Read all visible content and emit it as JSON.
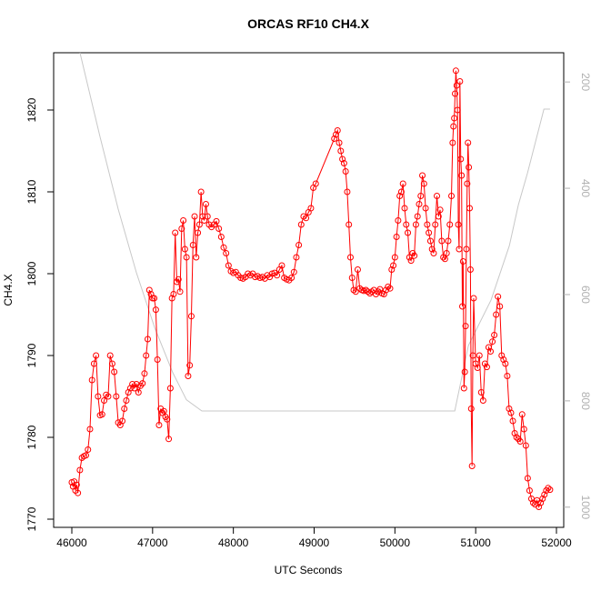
{
  "chart_data": {
    "type": "line",
    "title": "ORCAS RF10 CH4.X",
    "xlabel": "UTC Seconds",
    "ylabel": "CH4.X",
    "xlim": [
      45775,
      52090
    ],
    "ylim": [
      1769,
      1827
    ],
    "y2lim": [
      1038,
      145
    ],
    "xticks": [
      46000,
      47000,
      48000,
      49000,
      50000,
      51000,
      52000
    ],
    "yticks": [
      1770,
      1780,
      1790,
      1800,
      1810,
      1820
    ],
    "y2ticks": [
      200,
      400,
      600,
      800,
      1000
    ],
    "series": [
      {
        "color": "#c8c8c8",
        "axis": "y2",
        "markers": false,
        "x": [
          46101,
          46349,
          46574,
          46800,
          47025,
          47250,
          47419,
          47610,
          50741,
          50910,
          51191,
          51417,
          51529,
          51642,
          51845,
          51920
        ],
        "values": [
          145,
          303,
          439,
          559,
          662,
          747,
          798,
          819,
          819,
          696,
          610,
          508,
          431,
          371,
          251,
          251
        ]
      },
      {
        "color": "#ff0000",
        "markers": true,
        "x": [
          46000,
          46015,
          46030,
          46045,
          46060,
          46075,
          46100,
          46125,
          46150,
          46175,
          46200,
          46225,
          46250,
          46275,
          46300,
          46325,
          46350,
          46375,
          46400,
          46425,
          46450,
          46475,
          46500,
          46525,
          46550,
          46575,
          46600,
          46625,
          46650,
          46675,
          46700,
          46725,
          46750,
          46775,
          46800,
          46825,
          46850,
          46875,
          46900,
          46920,
          46940,
          46960,
          46980,
          47000,
          47020,
          47040,
          47060,
          47080,
          47100,
          47120,
          47140,
          47160,
          47180,
          47200,
          47220,
          47240,
          47260,
          47280,
          47300,
          47320,
          47340,
          47360,
          47380,
          47400,
          47420,
          47440,
          47460,
          47480,
          47500,
          47520,
          47540,
          47560,
          47580,
          47600,
          47620,
          47640,
          47660,
          47680,
          47700,
          47730,
          47760,
          47790,
          47820,
          47850,
          47880,
          47910,
          47940,
          47970,
          48000,
          48030,
          48060,
          48090,
          48120,
          48150,
          48180,
          48210,
          48240,
          48270,
          48300,
          48330,
          48360,
          48390,
          48420,
          48450,
          48480,
          48510,
          48540,
          48570,
          48600,
          48630,
          48660,
          48690,
          48720,
          48750,
          48780,
          48810,
          48840,
          48870,
          48900,
          48930,
          48960,
          48990,
          49020,
          49250,
          49270,
          49290,
          49310,
          49330,
          49350,
          49370,
          49390,
          49410,
          49430,
          49450,
          49470,
          49490,
          49515,
          49540,
          49565,
          49590,
          49615,
          49640,
          49665,
          49690,
          49715,
          49740,
          49765,
          49790,
          49815,
          49840,
          49865,
          49890,
          49915,
          49940,
          49960,
          49980,
          50000,
          50020,
          50040,
          50060,
          50080,
          50100,
          50120,
          50140,
          50160,
          50180,
          50200,
          50220,
          50240,
          50260,
          50280,
          50300,
          50320,
          50340,
          50360,
          50380,
          50400,
          50420,
          50440,
          50460,
          50480,
          50500,
          50520,
          50540,
          50560,
          50580,
          50600,
          50620,
          50640,
          50660,
          50680,
          50700,
          50715,
          50725,
          50735,
          50745,
          50755,
          50765,
          50775,
          50785,
          50795,
          50805,
          50815,
          50825,
          50835,
          50845,
          50855,
          50865,
          50875,
          50885,
          50895,
          50905,
          50915,
          50925,
          50935,
          50945,
          50955,
          50965,
          50975,
          51000,
          51023,
          51046,
          51069,
          51092,
          51115,
          51138,
          51161,
          51184,
          51207,
          51230,
          51253,
          51276,
          51299,
          51322,
          51345,
          51368,
          51391,
          51414,
          51437,
          51460,
          51483,
          51506,
          51529,
          51552,
          51575,
          51598,
          51621,
          51644,
          51667,
          51690,
          51713,
          51736,
          51759,
          51782,
          51805,
          51828,
          51851,
          51874,
          51897,
          51920
        ],
        "values": [
          1774.5,
          1774,
          1774.6,
          1773.5,
          1774.2,
          1773.2,
          1776,
          1777.5,
          1777.7,
          1777.8,
          1778.5,
          1781,
          1787,
          1789,
          1790,
          1785,
          1782.7,
          1782.8,
          1784.5,
          1785.2,
          1785,
          1790,
          1789,
          1788,
          1785,
          1781.8,
          1781.5,
          1782,
          1783.5,
          1784.5,
          1785.5,
          1786,
          1786.5,
          1786,
          1786.5,
          1785.5,
          1786.3,
          1786.6,
          1787.8,
          1790,
          1792,
          1798,
          1797.5,
          1797,
          1797,
          1795.6,
          1789.5,
          1781.5,
          1783.5,
          1783,
          1783.2,
          1782.5,
          1782.2,
          1779.8,
          1786,
          1797,
          1797.5,
          1805,
          1799,
          1799.3,
          1797.8,
          1805.5,
          1806.5,
          1803,
          1802,
          1787.5,
          1788.8,
          1794.8,
          1803.5,
          1807,
          1802,
          1805,
          1806,
          1810,
          1807,
          1806.5,
          1808.5,
          1807,
          1806,
          1805.7,
          1806,
          1806.4,
          1805.5,
          1804.5,
          1803.2,
          1802.5,
          1801,
          1800.3,
          1800.1,
          1800.2,
          1799.8,
          1799.5,
          1799.4,
          1799.6,
          1800,
          1799.8,
          1800,
          1799.6,
          1799.7,
          1799.5,
          1799.6,
          1799.4,
          1799.8,
          1799.6,
          1800,
          1800.1,
          1799.8,
          1800.5,
          1801,
          1799.5,
          1799.3,
          1799.2,
          1799.5,
          1800.2,
          1802,
          1803.5,
          1806,
          1807,
          1806.8,
          1807.5,
          1808,
          1810.5,
          1811,
          1816.5,
          1817,
          1817.5,
          1816,
          1815,
          1814,
          1813.5,
          1812.5,
          1810,
          1806,
          1802,
          1799.5,
          1798,
          1797.8,
          1800.5,
          1798.2,
          1798,
          1797.9,
          1798,
          1797.8,
          1797.6,
          1797.8,
          1798,
          1797.5,
          1797.8,
          1798.1,
          1797.6,
          1797.5,
          1798,
          1798.4,
          1798.2,
          1800.5,
          1801,
          1802,
          1804.5,
          1806.5,
          1809.5,
          1810,
          1811,
          1808,
          1806,
          1805,
          1802,
          1801.6,
          1802.5,
          1802.2,
          1806,
          1807,
          1808.5,
          1809.5,
          1812,
          1811,
          1808,
          1806,
          1805,
          1804,
          1803,
          1802.5,
          1806,
          1809.5,
          1807,
          1807.8,
          1804,
          1802,
          1801.8,
          1802.5,
          1804,
          1806,
          1809.5,
          1816,
          1818,
          1819,
          1822,
          1824.8,
          1823,
          1820,
          1806,
          1803,
          1823.5,
          1814,
          1812,
          1796,
          1801.5,
          1786,
          1788,
          1793.6,
          1803,
          1811,
          1816,
          1813,
          1808,
          1800.5,
          1783.5,
          1776.5,
          1790,
          1797,
          1789,
          1788.5,
          1790,
          1785.5,
          1784.5,
          1789,
          1788.6,
          1791,
          1790.5,
          1791.7,
          1792.5,
          1795,
          1797.2,
          1796,
          1790,
          1789.5,
          1789,
          1787.5,
          1783.5,
          1783,
          1782,
          1780.5,
          1780,
          1779.8,
          1779.5,
          1782.8,
          1781,
          1779,
          1775,
          1773.5,
          1772.5,
          1772,
          1771.8,
          1772.3,
          1771.5,
          1772,
          1772.5,
          1773,
          1773.5,
          1773.8,
          1773.6
        ]
      }
    ]
  }
}
